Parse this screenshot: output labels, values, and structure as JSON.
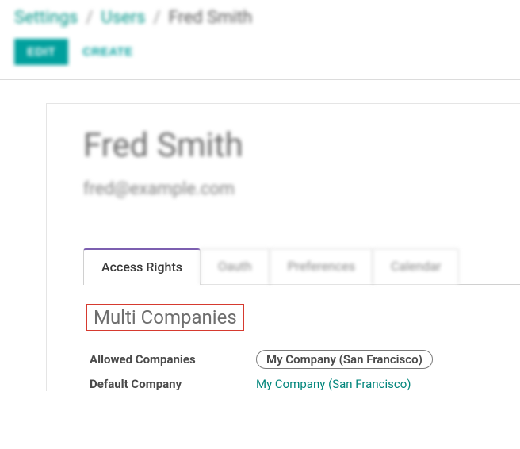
{
  "colors": {
    "accent": "#00a09d",
    "link": "#00857b",
    "tab_active_border": "#7c5fb0",
    "highlight_box": "#d63a2f",
    "text_muted": "#6e6e6e",
    "border": "#d0d0d0"
  },
  "breadcrumb": {
    "items": [
      {
        "label": "Settings",
        "link": true
      },
      {
        "label": "Users",
        "link": true
      },
      {
        "label": "Fred Smith",
        "link": false
      }
    ],
    "separator": "/"
  },
  "toolbar": {
    "edit_label": "EDIT",
    "create_label": "CREATE"
  },
  "user": {
    "name": "Fred Smith",
    "email": "fred@example.com"
  },
  "tabs": [
    {
      "label": "Access Rights",
      "active": true
    },
    {
      "label": "Oauth",
      "active": false
    },
    {
      "label": "Preferences",
      "active": false
    },
    {
      "label": "Calendar",
      "active": false
    }
  ],
  "section": {
    "title": "Multi Companies",
    "fields": {
      "allowed_companies": {
        "label": "Allowed Companies",
        "value": "My Company (San Francisco)"
      },
      "default_company": {
        "label": "Default Company",
        "value": "My Company (San Francisco)"
      }
    }
  }
}
